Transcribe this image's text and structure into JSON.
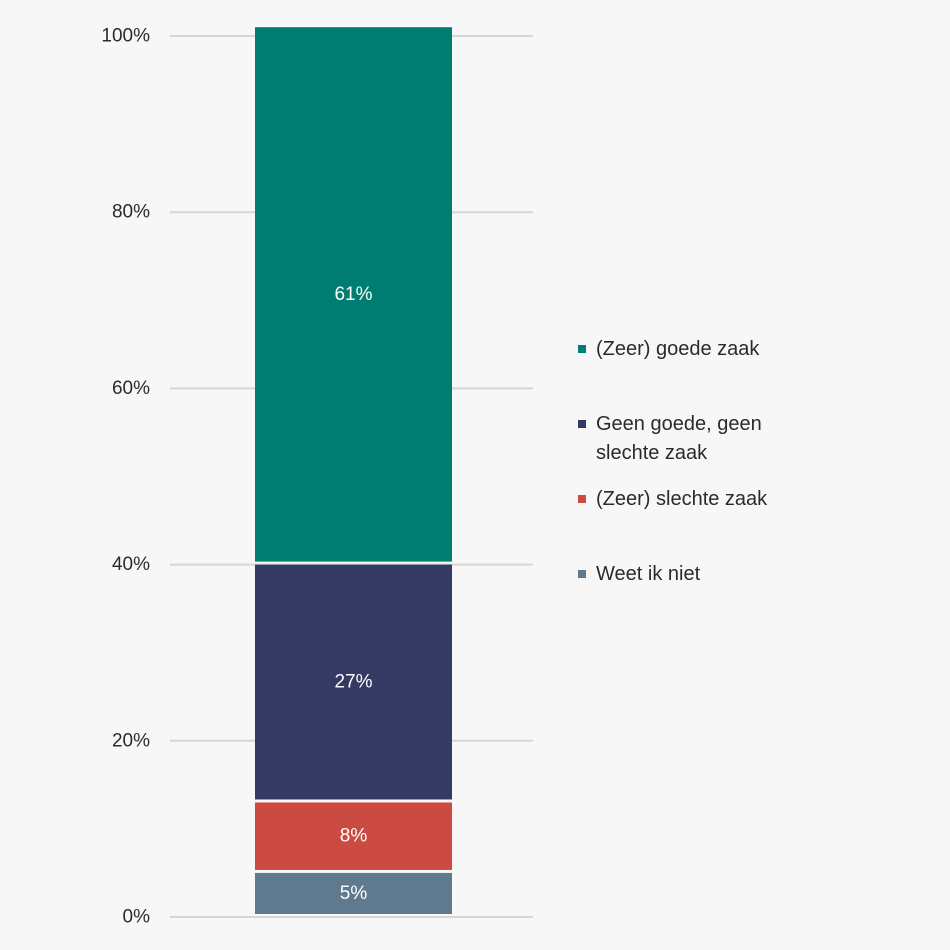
{
  "chart_data": {
    "type": "bar",
    "stacked": true,
    "orientation": "vertical",
    "categories": [
      ""
    ],
    "series": [
      {
        "name": "(Zeer) goede zaak",
        "values": [
          61
        ],
        "label": "61%",
        "color": "#007d73"
      },
      {
        "name": "Geen goede, geen slechte zaak",
        "values": [
          27
        ],
        "label": "27%",
        "color": "#353a64"
      },
      {
        "name": "(Zeer) slechte zaak",
        "values": [
          8
        ],
        "label": "8%",
        "color": "#cb4b42"
      },
      {
        "name": "Weet ik niet",
        "values": [
          5
        ],
        "label": "5%",
        "color": "#5f7a8f"
      }
    ],
    "y_ticks": [
      "0%",
      "20%",
      "40%",
      "60%",
      "80%",
      "100%"
    ],
    "ylim": [
      0,
      100
    ],
    "grid": true,
    "legend": {
      "placement": "right",
      "items": [
        {
          "lines": [
            "(Zeer) goede zaak"
          ],
          "color": "#007d73"
        },
        {
          "lines": [
            "Geen goede, geen",
            "slechte zaak"
          ],
          "color": "#353a64"
        },
        {
          "lines": [
            "(Zeer) slechte zaak"
          ],
          "color": "#cb4b42"
        },
        {
          "lines": [
            "Weet ik niet"
          ],
          "color": "#5f7a8f"
        }
      ]
    },
    "colors": {
      "gridline": "#d6d6d6",
      "axis_text": "#2b2b2b",
      "data_label": "#ffffff",
      "background": "#f7f7f7"
    }
  }
}
